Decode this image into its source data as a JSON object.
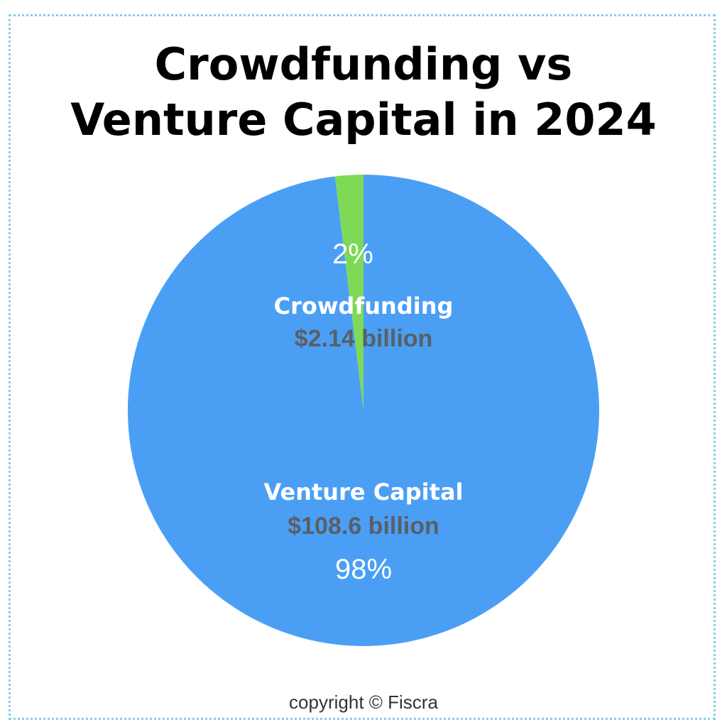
{
  "chart_data": {
    "type": "pie",
    "title_lines": [
      "Crowdfunding vs",
      "Venture Capital in 2024"
    ],
    "slices": [
      {
        "label": "Crowdfunding",
        "amount": "$2.14 billion",
        "value": 2.14,
        "percent": "2%",
        "color": "#7ed957"
      },
      {
        "label": "Venture Capital",
        "amount": "$108.6 billion",
        "value": 108.6,
        "percent": "98%",
        "color": "#4a9ff5"
      }
    ],
    "legend": "none",
    "label_colors": {
      "name": "#ffffff",
      "amount": "#5a5f66",
      "percent": "#ffffff"
    }
  },
  "footer": {
    "copyright": "copyright © Fiscra"
  },
  "frame": {
    "border_color": "#8ccbe6"
  }
}
